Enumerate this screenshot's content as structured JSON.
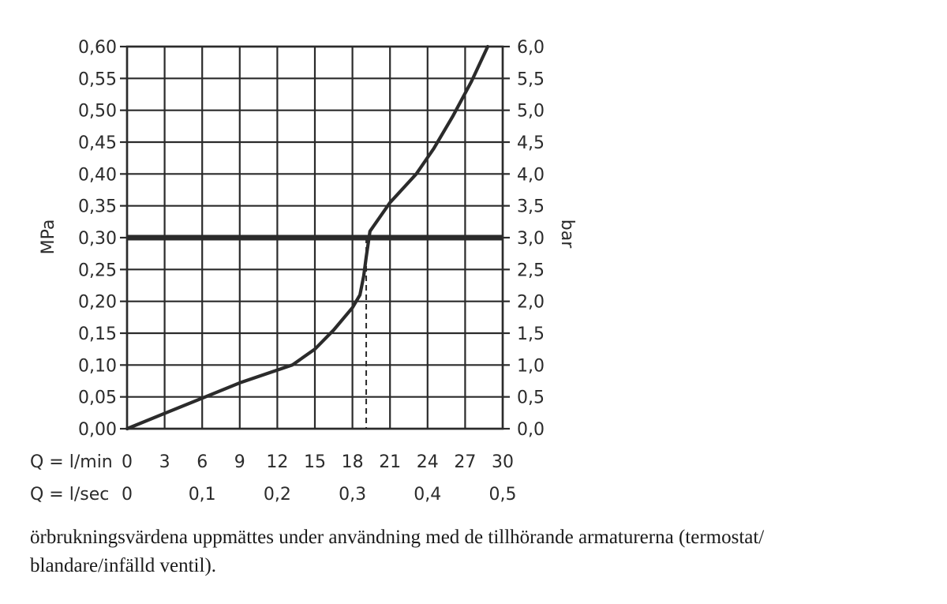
{
  "chart_data": {
    "type": "line",
    "x_ticks_lmin": [
      "0",
      "3",
      "6",
      "9",
      "12",
      "15",
      "18",
      "21",
      "24",
      "27",
      "30"
    ],
    "x_ticks_lsec": [
      "0",
      "0,1",
      "0,2",
      "0,3",
      "0,4",
      "0,5"
    ],
    "x_ticks_lsec_values": [
      0,
      0.1,
      0.2,
      0.3,
      0.4,
      0.5
    ],
    "x_row1_label": "Q = l/min",
    "x_row2_label": "Q = l/sec",
    "xlim": [
      0,
      30
    ],
    "y_left_label": "MPa",
    "y_right_label": "bar",
    "y_left_ticks": [
      "0,00",
      "0,05",
      "0,10",
      "0,15",
      "0,20",
      "0,25",
      "0,30",
      "0,35",
      "0,40",
      "0,45",
      "0,50",
      "0,55",
      "0,60"
    ],
    "y_right_ticks": [
      "0,0",
      "0,5",
      "1,0",
      "1,5",
      "2,0",
      "2,5",
      "3,0",
      "3,5",
      "4,0",
      "4,5",
      "5,0",
      "5,5",
      "6,0"
    ],
    "ylim": [
      0,
      0.6
    ],
    "grid": true,
    "series": [
      {
        "x": [
          0,
          3,
          6,
          9,
          13.2,
          15,
          16.5,
          18,
          18.6,
          18.9,
          19.1,
          19.4,
          21,
          23.1,
          24.5,
          26,
          27.5,
          28.8
        ],
        "y": [
          0,
          0.024,
          0.048,
          0.072,
          0.1,
          0.125,
          0.155,
          0.19,
          0.21,
          0.24,
          0.27,
          0.31,
          0.355,
          0.4,
          0.44,
          0.49,
          0.545,
          0.6
        ]
      }
    ],
    "reference_line_y": 0.3,
    "reference_drop_x": 19.1
  },
  "caption": {
    "line1": "örbrukningsvärdena uppmättes under användning med de tillhörande armaturerna (termostat/",
    "line2": "blandare/infälld ventil)."
  },
  "colors": {
    "ink": "#2b2b2b",
    "grid": "#2b2b2b"
  }
}
